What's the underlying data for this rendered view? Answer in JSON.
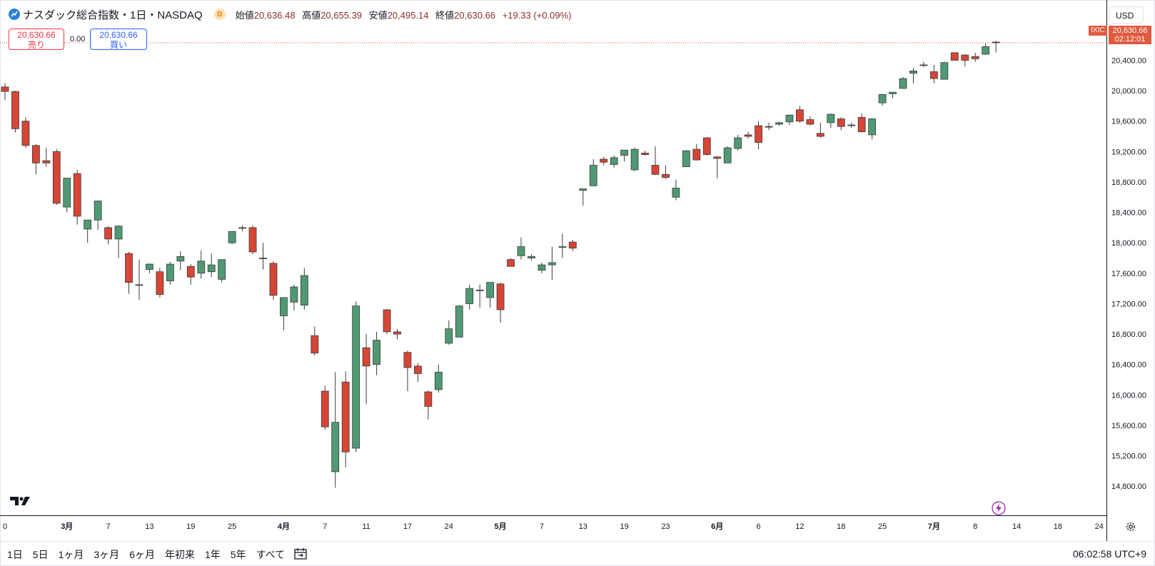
{
  "header": {
    "title": "ナスダック総合指数・1日・NASDAQ",
    "badge": "D",
    "open_label": "始値",
    "open": "20,636.48",
    "high_label": "高値",
    "high": "20,655.39",
    "low_label": "安値",
    "low": "20,495.14",
    "close_label": "終値",
    "close": "20,630.66",
    "change": "+19.33 (+0.09%)"
  },
  "trade": {
    "sell_price": "20,630.66",
    "sell_label": "売り",
    "spread": "0.00",
    "buy_price": "20,630.66",
    "buy_label": "買い"
  },
  "scale": {
    "currency": "USD",
    "symbol_tag": "IXIC",
    "last_price": "20,630.66",
    "countdown": "02:12:01"
  },
  "bottom": {
    "ranges": [
      "1日",
      "5日",
      "1ヶ月",
      "3ヶ月",
      "6ヶ月",
      "年初来",
      "1年",
      "5年",
      "すべて"
    ],
    "clock": "06:02:58 UTC+9"
  },
  "colors": {
    "up": "#4f9a73",
    "down": "#d64535",
    "outline": "#3b3b3b"
  },
  "chart_data": {
    "type": "candlestick",
    "ylim": [
      14500,
      20900
    ],
    "yticks": [
      14800,
      15200,
      15600,
      16000,
      16400,
      16800,
      17200,
      17600,
      18000,
      18400,
      18800,
      19200,
      19600,
      20000,
      20400
    ],
    "ytick_labels": [
      "14,800.00",
      "15,200.00",
      "15,600.00",
      "16,000.00",
      "16,400.00",
      "16,800.00",
      "17,200.00",
      "17,600.00",
      "18,000.00",
      "18,400.00",
      "18,800.00",
      "19,200.00",
      "19,600.00",
      "20,000.00",
      "20,400.00"
    ],
    "xtick_labels": [
      {
        "i": 6,
        "label": "3月"
      },
      {
        "i": 10,
        "label": "7"
      },
      {
        "i": 14,
        "label": "13"
      },
      {
        "i": 18,
        "label": "19"
      },
      {
        "i": 22,
        "label": "25"
      },
      {
        "i": 27,
        "label": "4月"
      },
      {
        "i": 31,
        "label": "7"
      },
      {
        "i": 35,
        "label": "11"
      },
      {
        "i": 39,
        "label": "17"
      },
      {
        "i": 43,
        "label": "24"
      },
      {
        "i": 48,
        "label": "5月"
      },
      {
        "i": 52,
        "label": "7"
      },
      {
        "i": 56,
        "label": "13"
      },
      {
        "i": 60,
        "label": "19"
      },
      {
        "i": 64,
        "label": "23"
      },
      {
        "i": 69,
        "label": "6月"
      },
      {
        "i": 73,
        "label": "6"
      },
      {
        "i": 77,
        "label": "12"
      },
      {
        "i": 81,
        "label": "18"
      },
      {
        "i": 85,
        "label": "25"
      },
      {
        "i": 90,
        "label": "7月"
      },
      {
        "i": 94,
        "label": "8"
      },
      {
        "i": 98,
        "label": "14"
      },
      {
        "i": 102,
        "label": "18"
      },
      {
        "i": 106,
        "label": "24"
      }
    ],
    "first_tick_label": "0",
    "last_close": 20630.66,
    "candles": [
      [
        20050,
        20100,
        19880,
        19990
      ],
      [
        19990,
        20000,
        19450,
        19500
      ],
      [
        19600,
        19650,
        19250,
        19280
      ],
      [
        19280,
        19300,
        18900,
        19050
      ],
      [
        19080,
        19250,
        19000,
        19050
      ],
      [
        19200,
        19230,
        18500,
        18520
      ],
      [
        18470,
        18850,
        18400,
        18850
      ],
      [
        18910,
        18960,
        18240,
        18350
      ],
      [
        18180,
        18300,
        18000,
        18300
      ],
      [
        18300,
        18550,
        18170,
        18550
      ],
      [
        18200,
        18220,
        17980,
        18050
      ],
      [
        18050,
        18230,
        17800,
        18220
      ],
      [
        17860,
        17880,
        17330,
        17480
      ],
      [
        17450,
        17780,
        17250,
        17450
      ],
      [
        17650,
        17730,
        17600,
        17720
      ],
      [
        17620,
        17670,
        17280,
        17320
      ],
      [
        17500,
        17750,
        17450,
        17720
      ],
      [
        17760,
        17890,
        17640,
        17820
      ],
      [
        17690,
        17720,
        17450,
        17550
      ],
      [
        17600,
        17900,
        17530,
        17760
      ],
      [
        17620,
        17860,
        17550,
        17710
      ],
      [
        17520,
        17780,
        17480,
        17780
      ],
      [
        18000,
        18150,
        17980,
        18150
      ],
      [
        18200,
        18230,
        18150,
        18200
      ],
      [
        18200,
        18230,
        17850,
        17880
      ],
      [
        17800,
        18000,
        17650,
        17800
      ],
      [
        17730,
        17760,
        17250,
        17310
      ],
      [
        17040,
        17250,
        16850,
        17280
      ],
      [
        17220,
        17450,
        17110,
        17420
      ],
      [
        17180,
        17670,
        17120,
        17570
      ],
      [
        16780,
        16900,
        16520,
        16550
      ],
      [
        16050,
        16120,
        15540,
        15580
      ],
      [
        14990,
        16300,
        14780,
        15640
      ],
      [
        16170,
        16310,
        15050,
        15250
      ],
      [
        15300,
        17230,
        15250,
        17170
      ],
      [
        16620,
        16800,
        15880,
        16380
      ],
      [
        16400,
        16830,
        16260,
        16720
      ],
      [
        17120,
        17130,
        16800,
        16830
      ],
      [
        16830,
        16870,
        16730,
        16800
      ],
      [
        16560,
        16580,
        16050,
        16360
      ],
      [
        16380,
        16420,
        16170,
        16280
      ],
      [
        16040,
        16060,
        15680,
        15850
      ],
      [
        16070,
        16400,
        16030,
        16300
      ],
      [
        16680,
        16980,
        16660,
        16870
      ],
      [
        16760,
        17180,
        16760,
        17170
      ],
      [
        17200,
        17450,
        17120,
        17400
      ],
      [
        17370,
        17450,
        17150,
        17380
      ],
      [
        17280,
        17480,
        17150,
        17480
      ],
      [
        17460,
        17480,
        16950,
        17120
      ],
      [
        17780,
        17800,
        17700,
        17690
      ],
      [
        17830,
        18070,
        17780,
        17950
      ],
      [
        17800,
        17850,
        17770,
        17820
      ],
      [
        17640,
        17740,
        17600,
        17710
      ],
      [
        17710,
        17950,
        17510,
        17740
      ],
      [
        17950,
        18120,
        17800,
        17950
      ],
      [
        18010,
        18040,
        17890,
        17930
      ],
      [
        18690,
        18700,
        18490,
        18710
      ],
      [
        18750,
        19100,
        18750,
        19020
      ],
      [
        19100,
        19130,
        19020,
        19060
      ],
      [
        19030,
        19150,
        18990,
        19120
      ],
      [
        19150,
        19220,
        19070,
        19220
      ],
      [
        18960,
        19250,
        18940,
        19230
      ],
      [
        19180,
        19210,
        19150,
        19160
      ],
      [
        19020,
        19270,
        18890,
        18900
      ],
      [
        18900,
        19020,
        18840,
        18860
      ],
      [
        18600,
        18830,
        18560,
        18720
      ],
      [
        19000,
        19220,
        19000,
        19210
      ],
      [
        19230,
        19300,
        19080,
        19090
      ],
      [
        19380,
        19390,
        19150,
        19160
      ],
      [
        19130,
        19140,
        18850,
        19110
      ],
      [
        19050,
        19270,
        19050,
        19250
      ],
      [
        19240,
        19420,
        19210,
        19380
      ],
      [
        19420,
        19460,
        19370,
        19400
      ],
      [
        19540,
        19600,
        19230,
        19320
      ],
      [
        19520,
        19580,
        19480,
        19530
      ],
      [
        19560,
        19590,
        19540,
        19580
      ],
      [
        19590,
        19680,
        19550,
        19680
      ],
      [
        19750,
        19800,
        19580,
        19600
      ],
      [
        19620,
        19660,
        19540,
        19560
      ],
      [
        19440,
        19580,
        19380,
        19400
      ],
      [
        19580,
        19700,
        19510,
        19690
      ],
      [
        19630,
        19650,
        19480,
        19530
      ],
      [
        19540,
        19580,
        19510,
        19550
      ],
      [
        19650,
        19700,
        19450,
        19460
      ],
      [
        19420,
        19640,
        19360,
        19630
      ],
      [
        19840,
        19960,
        19800,
        19950
      ],
      [
        19960,
        19980,
        19900,
        19980
      ],
      [
        20030,
        20180,
        20030,
        20160
      ],
      [
        20230,
        20300,
        20100,
        20260
      ],
      [
        20340,
        20380,
        20310,
        20340
      ],
      [
        20250,
        20340,
        20100,
        20160
      ],
      [
        20150,
        20380,
        20150,
        20370
      ],
      [
        20500,
        20500,
        20400,
        20400
      ],
      [
        20470,
        20480,
        20320,
        20400
      ],
      [
        20450,
        20500,
        20380,
        20420
      ],
      [
        20480,
        20620,
        20470,
        20580
      ],
      [
        20640,
        20655,
        20500,
        20630
      ]
    ]
  }
}
